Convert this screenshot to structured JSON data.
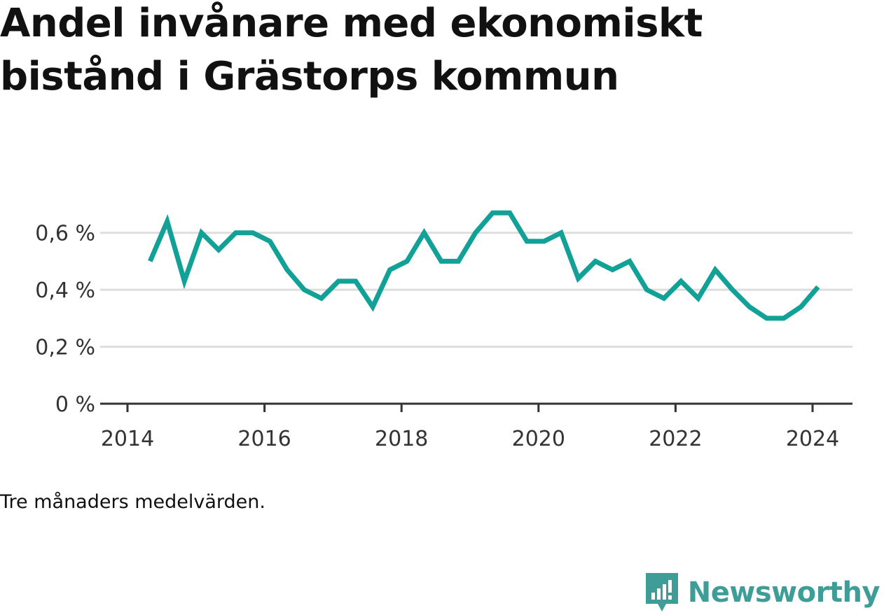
{
  "chart_data": {
    "type": "line",
    "title": "Andel invånare med ekonomiskt bistånd i Grästorps kommun",
    "note": "Tre månaders medelvärden.",
    "y_unit": "%",
    "ylim": [
      0,
      0.7
    ],
    "y_ticks": [
      {
        "value": 0,
        "label": "0 %"
      },
      {
        "value": 0.2,
        "label": "0,2 %"
      },
      {
        "value": 0.4,
        "label": "0,4 %"
      },
      {
        "value": 0.6,
        "label": "0,6 %"
      }
    ],
    "x_ticks": [
      {
        "value": 2014,
        "label": "2014"
      },
      {
        "value": 2016,
        "label": "2016"
      },
      {
        "value": 2018,
        "label": "2018"
      },
      {
        "value": 2020,
        "label": "2020"
      },
      {
        "value": 2022,
        "label": "2022"
      },
      {
        "value": 2024,
        "label": "2024"
      }
    ],
    "xlim": [
      2014,
      2024.6
    ],
    "grid": true,
    "color": "#12a196",
    "series": [
      {
        "x": [
          2014.33,
          2014.58,
          2014.83,
          2015.08,
          2015.33,
          2015.58,
          2015.83,
          2016.08,
          2016.33,
          2016.58,
          2016.83,
          2017.08,
          2017.33,
          2017.58,
          2017.83,
          2018.08,
          2018.33,
          2018.58,
          2018.83,
          2019.08,
          2019.33,
          2019.58,
          2019.83,
          2020.08,
          2020.33,
          2020.58,
          2020.83,
          2021.08,
          2021.33,
          2021.58,
          2021.83,
          2022.08,
          2022.33,
          2022.58,
          2022.83,
          2023.08,
          2023.33,
          2023.58,
          2023.83,
          2024.08
        ],
        "y": [
          0.5,
          0.64,
          0.43,
          0.6,
          0.54,
          0.6,
          0.6,
          0.57,
          0.47,
          0.4,
          0.37,
          0.43,
          0.43,
          0.34,
          0.47,
          0.5,
          0.6,
          0.5,
          0.5,
          0.6,
          0.67,
          0.67,
          0.57,
          0.57,
          0.6,
          0.44,
          0.5,
          0.47,
          0.5,
          0.4,
          0.37,
          0.43,
          0.37,
          0.47,
          0.4,
          0.34,
          0.3,
          0.3,
          0.34,
          0.41
        ]
      }
    ]
  },
  "brand": {
    "name": "Newsworthy",
    "color": "#3f9d98",
    "icon": "bar-chart-speech-bubble-icon"
  }
}
